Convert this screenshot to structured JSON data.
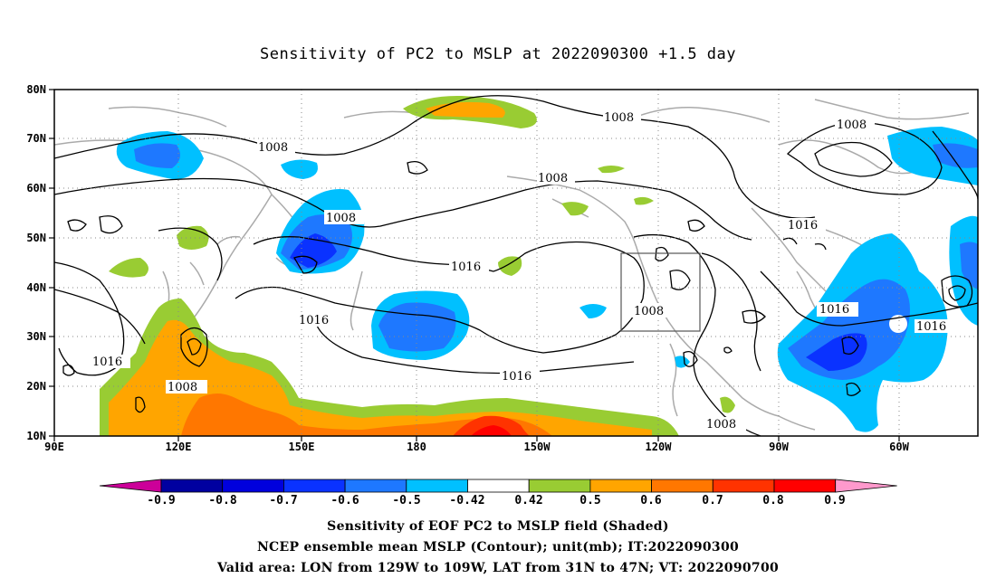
{
  "title": "Sensitivity of PC2 to MSLP at 2022090300 +1.5 day",
  "map": {
    "lon_labels": [
      "90E",
      "120E",
      "150E",
      "180",
      "150W",
      "120W",
      "90W",
      "60W"
    ],
    "lat_labels": [
      "10N",
      "20N",
      "30N",
      "40N",
      "50N",
      "60N",
      "70N",
      "80N"
    ],
    "contour_labels": [
      "1008",
      "1008",
      "1008",
      "1008",
      "1008",
      "1008",
      "1016",
      "1016",
      "1016",
      "1016",
      "1016",
      "1016",
      "1016",
      "1008",
      "1008"
    ]
  },
  "colorbar": {
    "ticks": [
      "-0.9",
      "-0.8",
      "-0.7",
      "-0.6",
      "-0.5",
      "-0.42",
      "0.42",
      "0.5",
      "0.6",
      "0.7",
      "0.8",
      "0.9"
    ],
    "colors": [
      "#cc0099",
      "#0000a0",
      "#0000dd",
      "#0a32ff",
      "#1e78ff",
      "#00c0ff",
      "#ffffff",
      "#99cc33",
      "#ffa500",
      "#ff7700",
      "#ff3300",
      "#ff0000",
      "#ff99cc"
    ]
  },
  "captions": {
    "line1": "Sensitivity of EOF PC2 to MSLP field (Shaded)",
    "line2": "NCEP ensemble mean MSLP (Contour); unit(mb); IT:2022090300",
    "line3": "Valid area: LON from 129W to 109W, LAT from 31N to 47N; VT: 2022090700"
  }
}
